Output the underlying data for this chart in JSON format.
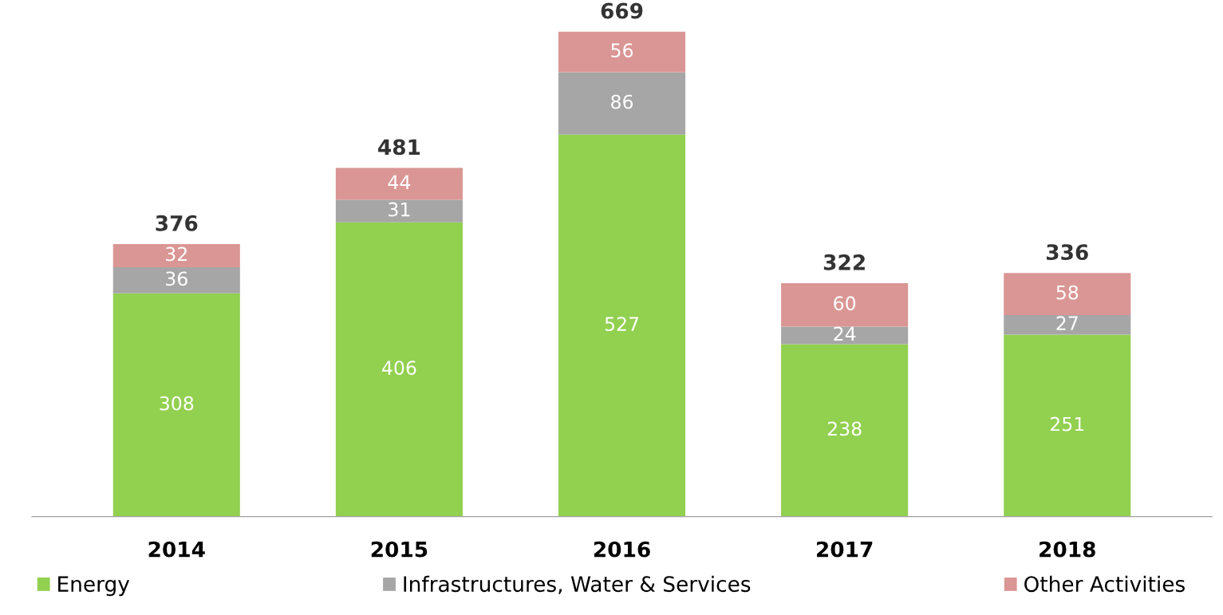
{
  "chart_data": {
    "type": "bar",
    "stacked": true,
    "categories": [
      "2014",
      "2015",
      "2016",
      "2017",
      "2018"
    ],
    "series": [
      {
        "name": "Energy",
        "color": "#92d050",
        "values": [
          308,
          406,
          527,
          238,
          251
        ]
      },
      {
        "name": "Infrastructures, Water & Services",
        "color": "#a6a6a6",
        "values": [
          36,
          31,
          86,
          24,
          27
        ]
      },
      {
        "name": "Other Activities",
        "color": "#da9694",
        "values": [
          32,
          44,
          56,
          60,
          58
        ]
      }
    ],
    "totals": [
      "376",
      "481",
      "669",
      "322",
      "336"
    ],
    "data_labels": true,
    "legend": "bottom",
    "grid": false
  }
}
